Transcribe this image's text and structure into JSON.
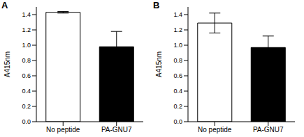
{
  "chart_data": [
    {
      "type": "bar",
      "title": "A",
      "y_label": "A415nm",
      "categories": [
        "No peptide",
        "PA-GNU7"
      ],
      "values": [
        1.43,
        0.98
      ],
      "errors": [
        0.01,
        0.2
      ],
      "colors": [
        "#ffffff",
        "#000000"
      ],
      "ylim": [
        0,
        1.5
      ],
      "yticks": [
        {
          "value": 0,
          "label": "0.0"
        },
        0.2,
        0.4,
        0.6,
        0.8,
        {
          "value": 1,
          "label": "1.0"
        },
        1.2,
        1.4
      ]
    },
    {
      "type": "bar",
      "title": "B",
      "y_label": "A415nm",
      "categories": [
        "No peptide",
        "PA-GNU7"
      ],
      "values": [
        1.29,
        0.97
      ],
      "errors": [
        0.13,
        0.15
      ],
      "colors": [
        "#ffffff",
        "#000000"
      ],
      "ylim": [
        0,
        1.5
      ],
      "yticks": [
        {
          "value": 0,
          "label": "0.0"
        },
        0.2,
        0.4,
        0.6,
        0.8,
        {
          "value": 1,
          "label": "1.0"
        },
        1.2,
        1.4
      ]
    }
  ]
}
